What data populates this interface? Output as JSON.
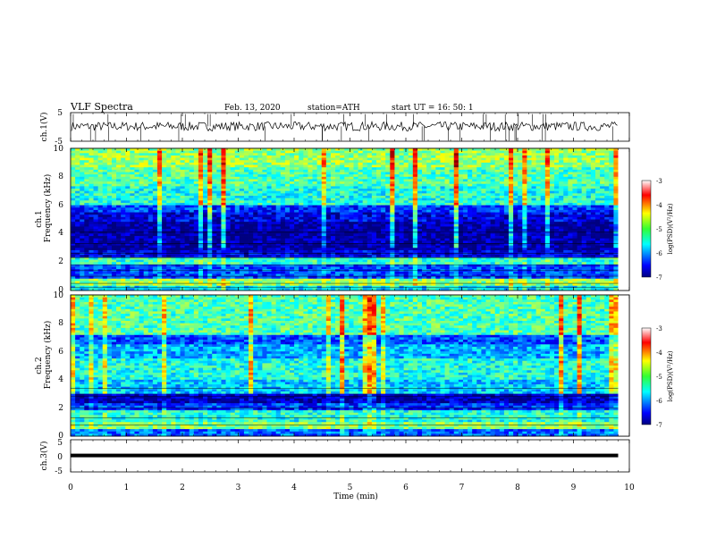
{
  "header": {
    "title": "VLF  Spectra",
    "date": "Feb. 13, 2020",
    "station": "station=ATH",
    "start": "start  UT  =    16: 50: 1"
  },
  "chart_data": [
    {
      "type": "line",
      "name": "ch1-waveform",
      "ylabel": "ch.1(V)",
      "ylim": [
        -5,
        5
      ],
      "yticks": [
        "5",
        "-5"
      ],
      "x_range_min": [
        0,
        9.8
      ],
      "level_v": 0.2,
      "amplitude_v": 1.6
    },
    {
      "type": "heatmap",
      "name": "ch1-spectrogram",
      "ylabel_top": "ch.1",
      "ylabel": "Frequency  (kHz)",
      "ylim": [
        0,
        10
      ],
      "yticks": [
        "0",
        "2",
        "4",
        "6",
        "8",
        "10"
      ],
      "x_range_min": [
        0,
        9.8
      ],
      "bands_khz_log": [
        [
          0.0,
          0.4,
          -5.6
        ],
        [
          0.4,
          0.8,
          -4.9
        ],
        [
          0.8,
          1.8,
          -6.2
        ],
        [
          1.8,
          2.3,
          -5.3
        ],
        [
          2.3,
          2.9,
          -6.6
        ],
        [
          2.9,
          4.8,
          -6.9
        ],
        [
          4.8,
          5.5,
          -6.6
        ],
        [
          5.5,
          6.0,
          -6.3
        ],
        [
          6.0,
          7.4,
          -5.4
        ],
        [
          7.4,
          8.6,
          -5.2
        ],
        [
          8.6,
          10.0,
          -4.9
        ]
      ],
      "lines_khz": [
        0.2,
        0.5,
        1.0,
        1.4,
        1.8,
        2.3,
        2.6,
        3.3,
        4.1
      ]
    },
    {
      "type": "heatmap",
      "name": "ch2-spectrogram",
      "ylabel_top": "ch.2",
      "ylabel": "Frequency  (kHz)",
      "ylim": [
        0,
        10
      ],
      "yticks": [
        "0",
        "2",
        "4",
        "6",
        "8",
        "10"
      ],
      "x_range_min": [
        0,
        9.8
      ],
      "bands_khz_log": [
        [
          0.0,
          0.5,
          -6.1
        ],
        [
          0.5,
          1.0,
          -5.0
        ],
        [
          1.0,
          1.8,
          -5.4
        ],
        [
          1.8,
          2.4,
          -6.3
        ],
        [
          2.4,
          3.0,
          -6.8
        ],
        [
          3.0,
          4.0,
          -5.7
        ],
        [
          4.0,
          5.5,
          -5.4
        ],
        [
          5.5,
          6.5,
          -5.8
        ],
        [
          6.5,
          7.2,
          -6.2
        ],
        [
          7.2,
          10.0,
          -5.2
        ]
      ],
      "lines_khz": [
        0.8,
        1.3,
        2.0,
        2.8,
        3.4
      ]
    },
    {
      "type": "line",
      "name": "ch3-waveform",
      "ylabel": "ch.3(V)",
      "ylim": [
        -5,
        5
      ],
      "yticks": [
        "5",
        "0",
        "-5"
      ],
      "x_range_min": [
        0,
        9.8
      ],
      "level_v": 0.1
    }
  ],
  "x_axis": {
    "label": "Time  (min)",
    "range": [
      0,
      10
    ],
    "ticks": [
      "0",
      "1",
      "2",
      "3",
      "4",
      "5",
      "6",
      "7",
      "8",
      "9",
      "10"
    ]
  },
  "colorbar": {
    "label": "log(PSD)(V²/Hz)",
    "range": [
      -7,
      -3
    ],
    "ticks": [
      "-3",
      "-4",
      "-5",
      "-6",
      "-7"
    ]
  }
}
